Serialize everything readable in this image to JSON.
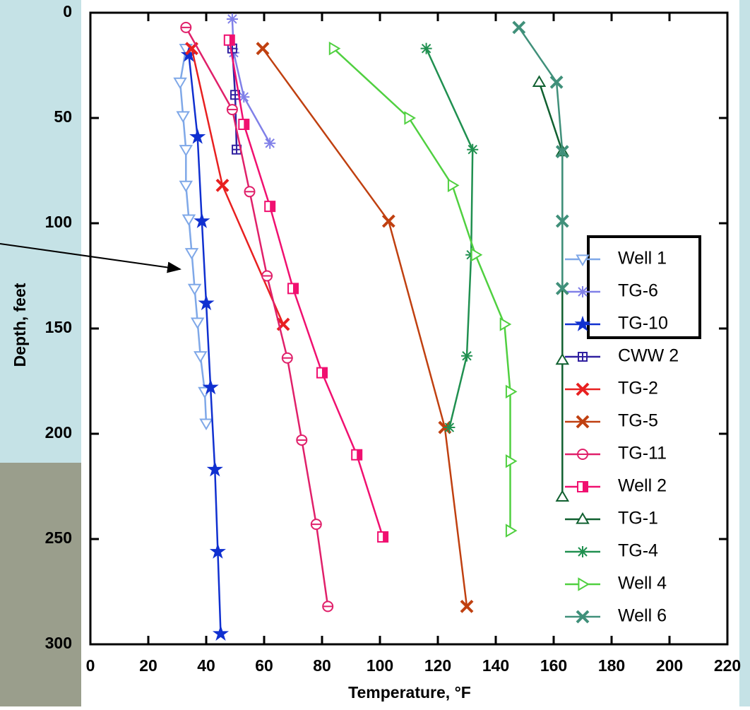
{
  "chart_data": {
    "type": "line",
    "xlabel": "Temperature, °F",
    "ylabel": "Depth, feet",
    "xlim": [
      0,
      220
    ],
    "xticks": [
      0,
      20,
      40,
      60,
      80,
      100,
      120,
      140,
      160,
      180,
      200,
      220
    ],
    "ylim": [
      0,
      300
    ],
    "yticks": [
      0,
      50,
      100,
      150,
      200,
      250,
      300
    ],
    "invert_y": true,
    "series": [
      {
        "name": "Well 1",
        "color": "#7fa8e8",
        "marker": "triangle-down",
        "x": [
          33,
          31,
          32,
          33,
          33,
          34,
          35,
          36,
          37,
          38,
          39.5,
          40
        ],
        "values": [
          17,
          33,
          49,
          65,
          82,
          98,
          114,
          131,
          147,
          163,
          180,
          195
        ]
      },
      {
        "name": "TG-6",
        "color": "#8080e8",
        "marker": "asterisk",
        "x": [
          49,
          49.5,
          53,
          62
        ],
        "values": [
          3,
          19,
          40,
          62
        ]
      },
      {
        "name": "TG-10",
        "color": "#1030d0",
        "marker": "star",
        "x": [
          34,
          37,
          38.5,
          40,
          41.5,
          43,
          44,
          45
        ],
        "values": [
          20,
          59,
          99,
          138,
          178,
          217,
          256,
          295
        ]
      },
      {
        "name": "CWW 2",
        "color": "#3020a0",
        "marker": "square-plus",
        "x": [
          49,
          50,
          50.5
        ],
        "values": [
          17,
          39,
          65
        ]
      },
      {
        "name": "TG-2",
        "color": "#e82020",
        "marker": "x",
        "x": [
          35,
          45.6,
          66.6
        ],
        "values": [
          17,
          82,
          148
        ]
      },
      {
        "name": "TG-5",
        "color": "#c04010",
        "marker": "x",
        "x": [
          59.5,
          103,
          122.4,
          130
        ],
        "values": [
          17,
          99,
          197,
          282
        ]
      },
      {
        "name": "TG-11",
        "color": "#e0206a",
        "marker": "circle-plus",
        "x": [
          33,
          49,
          55,
          61,
          68,
          73,
          78,
          82
        ],
        "values": [
          7,
          46,
          85,
          125,
          164,
          203,
          243,
          282
        ]
      },
      {
        "name": "Well 2",
        "color": "#f01070",
        "marker": "square-half",
        "x": [
          48,
          53,
          62,
          70,
          80,
          92,
          101
        ],
        "values": [
          13,
          53,
          92,
          131,
          171,
          210,
          249
        ]
      },
      {
        "name": "TG-1",
        "color": "#106030",
        "marker": "triangle-up",
        "x": [
          155,
          163,
          163,
          163
        ],
        "values": [
          33,
          66,
          165,
          230
        ]
      },
      {
        "name": "TG-4",
        "color": "#209050",
        "marker": "asterisk",
        "x": [
          116,
          132,
          131.5,
          130,
          124
        ],
        "values": [
          17,
          65,
          115,
          163,
          197
        ]
      },
      {
        "name": "Well 4",
        "color": "#50d040",
        "marker": "triangle-right",
        "x": [
          84,
          110,
          125,
          133,
          143,
          145,
          145,
          145
        ],
        "values": [
          17,
          50,
          82,
          115,
          148,
          180,
          213,
          246
        ]
      },
      {
        "name": "Well 6",
        "color": "#40907a",
        "marker": "x",
        "x": [
          148,
          161,
          163,
          163,
          163
        ],
        "values": [
          7,
          33,
          66,
          99,
          131
        ]
      }
    ]
  }
}
